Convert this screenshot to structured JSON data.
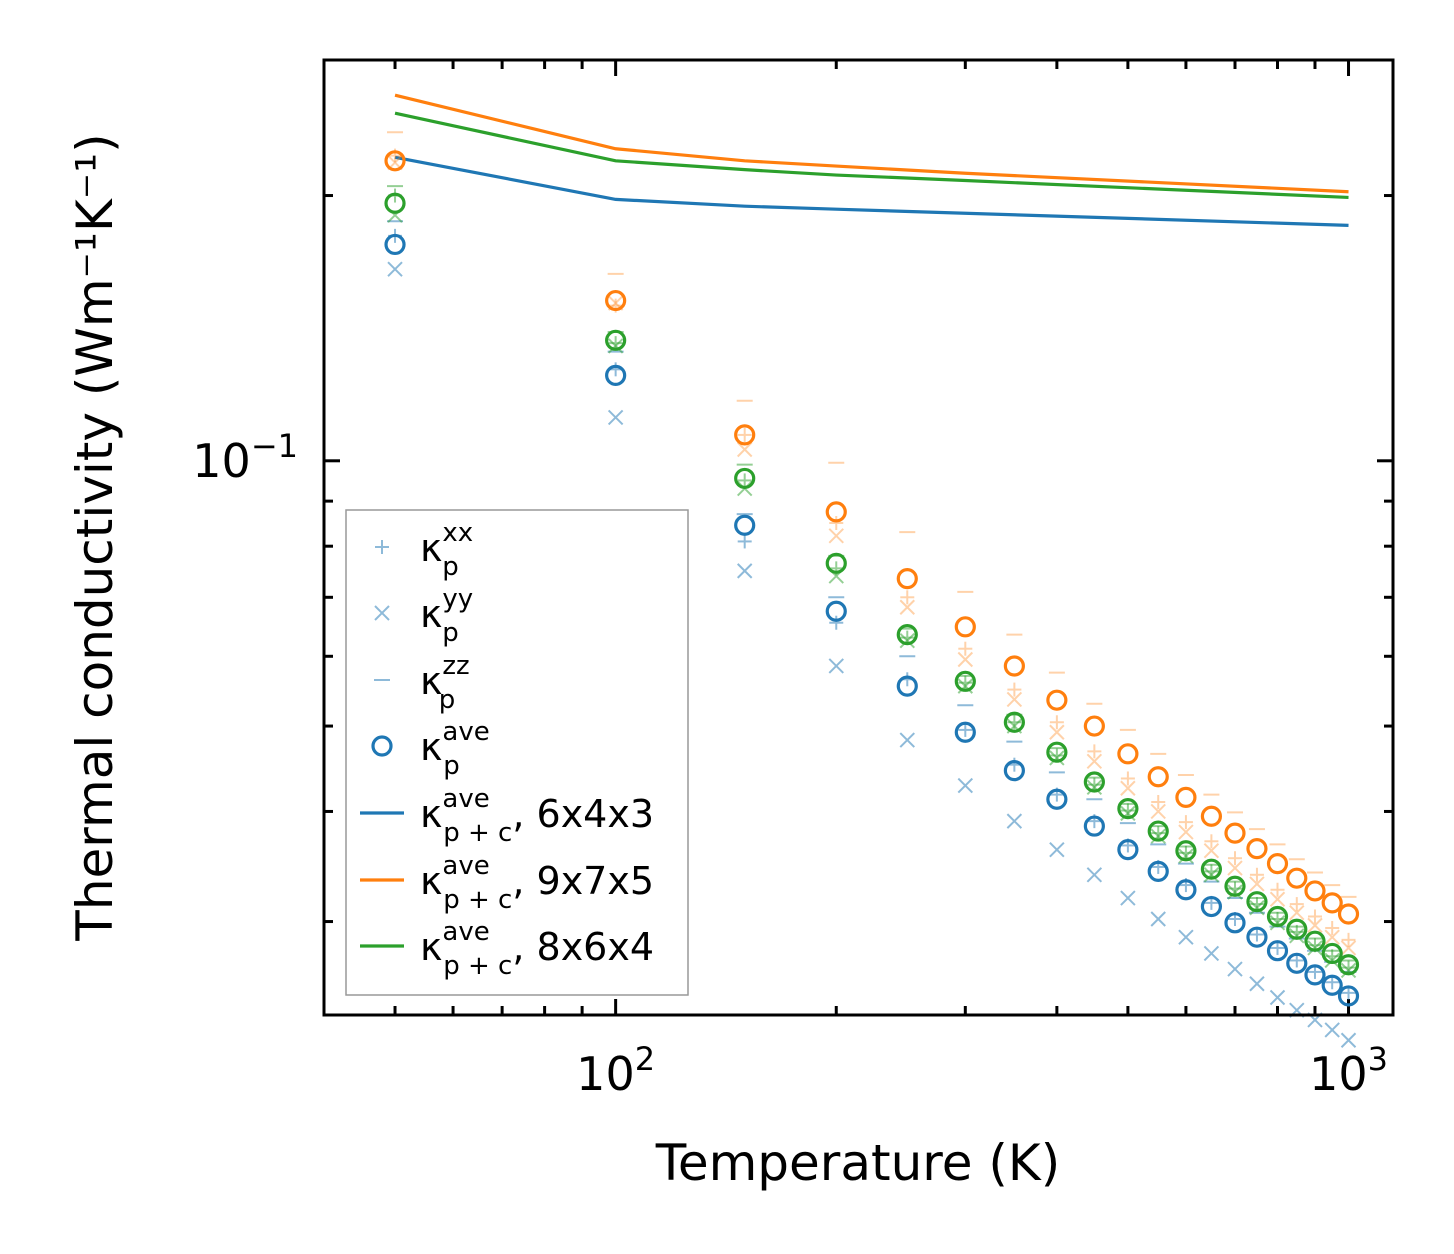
{
  "chart_data": {
    "type": "scatter",
    "xscale": "log",
    "yscale": "log",
    "xlabel": "Temperature (K)",
    "ylabel": "Thermal conductivity (Wm⁻¹K⁻¹)",
    "xlim": [
      40,
      1150
    ],
    "ylim": [
      0.0235,
      0.285
    ],
    "x_tick_labels": [
      {
        "value": 100,
        "base": "10",
        "exp": "2"
      },
      {
        "value": 1000,
        "base": "10",
        "exp": "3"
      }
    ],
    "y_tick_labels": [
      {
        "value": 0.1,
        "base": "10",
        "exp": "−1"
      }
    ],
    "colors": {
      "blue": "#1f77b4",
      "orange": "#ff7f0e",
      "green": "#2ca02c"
    },
    "temperatures": [
      50,
      100,
      150,
      200,
      250,
      300,
      350,
      400,
      450,
      500,
      550,
      600,
      650,
      700,
      750,
      800,
      850,
      900,
      950,
      1000
    ],
    "scatter_series": [
      {
        "name": "kxx 6x4x3",
        "marker": "plus",
        "color": "#1f77b4",
        "alpha": 0.5,
        "values": [
          0.18,
          0.127,
          0.081,
          0.0655,
          0.0565,
          0.0495,
          0.0452,
          0.0418,
          0.039,
          0.0366,
          0.0346,
          0.033,
          0.0315,
          0.0302,
          0.029,
          0.028,
          0.0271,
          0.0263,
          0.0256,
          0.0249
        ]
      },
      {
        "name": "kyy 6x4x3",
        "marker": "x",
        "color": "#1f77b4",
        "alpha": 0.5,
        "values": [
          0.165,
          0.112,
          0.075,
          0.0585,
          0.0482,
          0.0428,
          0.039,
          0.0362,
          0.0339,
          0.0319,
          0.0302,
          0.0288,
          0.0276,
          0.0265,
          0.0255,
          0.0246,
          0.0238,
          0.0232,
          0.0226,
          0.022
        ]
      },
      {
        "name": "kzz 6x4x3",
        "marker": "dash",
        "color": "#1f77b4",
        "alpha": 0.5,
        "values": [
          0.187,
          0.133,
          0.087,
          0.07,
          0.06,
          0.0528,
          0.048,
          0.0443,
          0.0413,
          0.0388,
          0.0367,
          0.0349,
          0.0333,
          0.0319,
          0.0307,
          0.0296,
          0.0287,
          0.0278,
          0.027,
          0.0263
        ]
      },
      {
        "name": "kave 6x4x3",
        "marker": "circle",
        "color": "#1f77b4",
        "alpha": 1,
        "values": [
          0.176,
          0.125,
          0.0845,
          0.0675,
          0.0555,
          0.0492,
          0.0445,
          0.0413,
          0.0385,
          0.0362,
          0.0342,
          0.0326,
          0.0312,
          0.0299,
          0.0288,
          0.0278,
          0.0269,
          0.0261,
          0.0254,
          0.0247
        ]
      },
      {
        "name": "kxx 9x7x5",
        "marker": "plus",
        "color": "#ff7f0e",
        "alpha": 0.35,
        "values": [
          0.222,
          0.15,
          0.107,
          0.085,
          0.07,
          0.0612,
          0.055,
          0.0505,
          0.0468,
          0.0436,
          0.041,
          0.0389,
          0.037,
          0.0354,
          0.0339,
          0.0326,
          0.0314,
          0.0304,
          0.0295,
          0.0286
        ]
      },
      {
        "name": "kyy 9x7x5",
        "marker": "x",
        "color": "#ff7f0e",
        "alpha": 0.35,
        "values": [
          0.218,
          0.151,
          0.103,
          0.0822,
          0.0682,
          0.0595,
          0.0536,
          0.0492,
          0.0456,
          0.0425,
          0.04,
          0.0379,
          0.0361,
          0.0345,
          0.0331,
          0.0318,
          0.0307,
          0.0297,
          0.0288,
          0.028
        ]
      },
      {
        "name": "kzz 9x7x5",
        "marker": "dash",
        "color": "#ff7f0e",
        "alpha": 0.35,
        "values": [
          0.236,
          0.163,
          0.117,
          0.0995,
          0.083,
          0.071,
          0.0635,
          0.0575,
          0.053,
          0.0495,
          0.0465,
          0.044,
          0.0418,
          0.0399,
          0.0382,
          0.0367,
          0.0353,
          0.0341,
          0.033,
          0.032
        ]
      },
      {
        "name": "kave 9x7x5",
        "marker": "circle",
        "color": "#ff7f0e",
        "alpha": 1,
        "values": [
          0.219,
          0.152,
          0.107,
          0.0875,
          0.0735,
          0.0648,
          0.0585,
          0.0535,
          0.05,
          0.0465,
          0.0438,
          0.0415,
          0.0395,
          0.0378,
          0.0363,
          0.0349,
          0.0336,
          0.0325,
          0.0315,
          0.0306
        ]
      },
      {
        "name": "kxx 8x6x4",
        "marker": "plus",
        "color": "#2ca02c",
        "alpha": 0.5,
        "values": [
          0.2,
          0.136,
          0.095,
          0.0755,
          0.063,
          0.056,
          0.0505,
          0.0463,
          0.0429,
          0.0401,
          0.0378,
          0.0359,
          0.0342,
          0.0327,
          0.0314,
          0.0302,
          0.0292,
          0.0282,
          0.0274,
          0.0266
        ]
      },
      {
        "name": "kyy 8x6x4",
        "marker": "x",
        "color": "#2ca02c",
        "alpha": 0.5,
        "values": [
          0.19,
          0.135,
          0.093,
          0.074,
          0.0625,
          0.0555,
          0.05,
          0.046,
          0.0426,
          0.0398,
          0.0375,
          0.0356,
          0.0339,
          0.0324,
          0.0311,
          0.0299,
          0.0289,
          0.028,
          0.0271,
          0.0264
        ]
      },
      {
        "name": "kzz 8x6x4",
        "marker": "dash",
        "color": "#2ca02c",
        "alpha": 0.5,
        "values": [
          0.205,
          0.14,
          0.099,
          0.078,
          0.0645,
          0.057,
          0.0515,
          0.0472,
          0.0437,
          0.0408,
          0.0385,
          0.0365,
          0.0348,
          0.0333,
          0.0319,
          0.0307,
          0.0296,
          0.0287,
          0.0278,
          0.0271
        ]
      },
      {
        "name": "kave 8x6x4",
        "marker": "circle",
        "color": "#2ca02c",
        "alpha": 1,
        "values": [
          0.196,
          0.137,
          0.0955,
          0.0765,
          0.0635,
          0.0562,
          0.0505,
          0.0467,
          0.0432,
          0.0403,
          0.038,
          0.0361,
          0.0344,
          0.0329,
          0.0316,
          0.0304,
          0.0294,
          0.0285,
          0.0276,
          0.0268
        ]
      }
    ],
    "line_series": [
      {
        "name": "kp+c ave 6x4x3",
        "color": "#1f77b4",
        "x": [
          50,
          100,
          150,
          200,
          1000
        ],
        "values": [
          0.221,
          0.198,
          0.1945,
          0.193,
          0.185
        ]
      },
      {
        "name": "kp+c ave 9x7x5",
        "color": "#ff7f0e",
        "x": [
          50,
          100,
          150,
          200,
          300,
          1000
        ],
        "values": [
          0.26,
          0.226,
          0.219,
          0.216,
          0.212,
          0.202
        ]
      },
      {
        "name": "kp+c ave 8x6x4",
        "color": "#2ca02c",
        "x": [
          50,
          100,
          150,
          200,
          300,
          1000
        ],
        "values": [
          0.248,
          0.219,
          0.214,
          0.211,
          0.208,
          0.199
        ]
      }
    ],
    "legend": {
      "position": "lower-left",
      "entries": [
        {
          "marker": "plus",
          "color": "#1f77b4",
          "base": "κ",
          "sub": "p",
          "sup": "xx",
          "suffix": ""
        },
        {
          "marker": "x",
          "color": "#1f77b4",
          "base": "κ",
          "sub": "p",
          "sup": "yy",
          "suffix": ""
        },
        {
          "marker": "dash",
          "color": "#1f77b4",
          "base": "κ",
          "sub": "p",
          "sup": "zz",
          "suffix": ""
        },
        {
          "marker": "circle",
          "color": "#1f77b4",
          "base": "κ",
          "sub": "p",
          "sup": "ave",
          "suffix": ""
        },
        {
          "marker": "line",
          "color": "#1f77b4",
          "base": "κ",
          "sub": "p + c",
          "sup": "ave",
          "suffix": ", 6x4x3"
        },
        {
          "marker": "line",
          "color": "#ff7f0e",
          "base": "κ",
          "sub": "p + c",
          "sup": "ave",
          "suffix": ", 9x7x5"
        },
        {
          "marker": "line",
          "color": "#2ca02c",
          "base": "κ",
          "sub": "p + c",
          "sup": "ave",
          "suffix": ", 8x6x4"
        }
      ]
    }
  }
}
